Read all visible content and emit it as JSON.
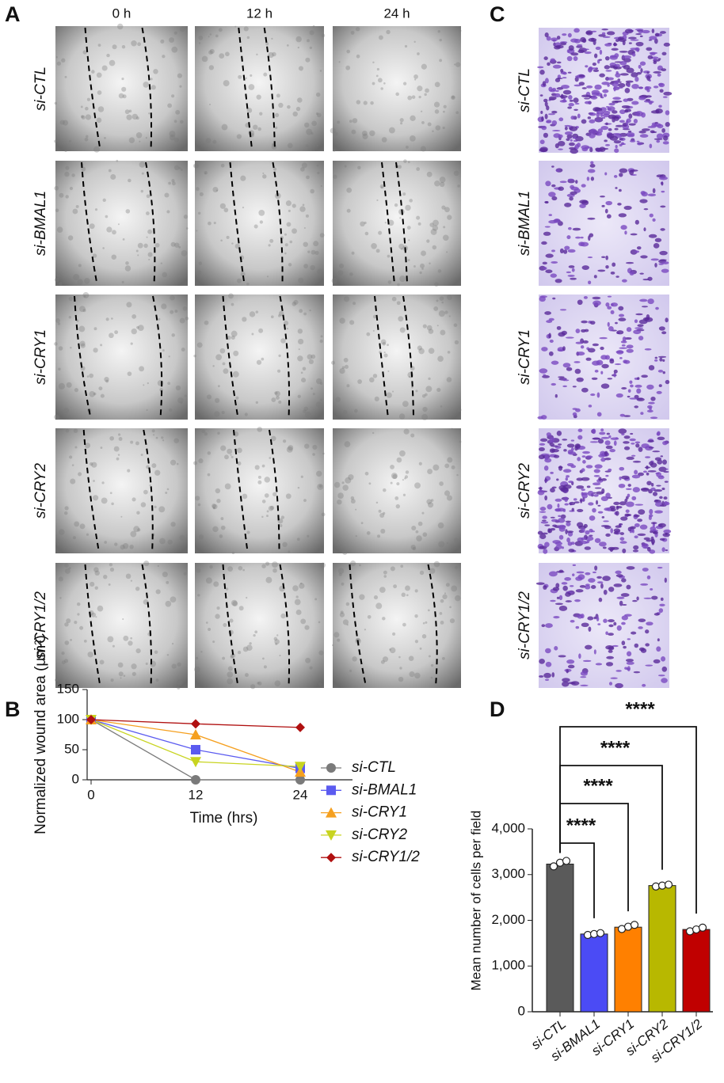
{
  "panel_labels": [
    "A",
    "B",
    "C",
    "D"
  ],
  "panel_a": {
    "columns": [
      "0 h",
      "12 h",
      "24 h"
    ],
    "rows": [
      "si-CTL",
      "si-BMAL1",
      "si-CRY1",
      "si-CRY2",
      "si-CRY1/2"
    ]
  },
  "panel_c": {
    "rows": [
      "si-CTL",
      "si-BMAL1",
      "si-CRY1",
      "si-CRY2",
      "si-CRY1/2"
    ]
  },
  "chart_data": [
    {
      "type": "line",
      "x_label": "Time (hrs)",
      "y_label": "Normalized wound area (μm²)",
      "x": [
        0,
        12,
        24
      ],
      "xlim": [
        0,
        30
      ],
      "xticks": [
        0,
        12,
        24
      ],
      "ylim": [
        0,
        150
      ],
      "yticks": [
        0,
        50,
        100,
        150
      ],
      "legend": "right",
      "series": [
        {
          "name": "si-CTL",
          "color": "#7a7a7a",
          "marker": "circle",
          "values": [
            100,
            0,
            0
          ]
        },
        {
          "name": "si-BMAL1",
          "color": "#5b5bf0",
          "marker": "square",
          "values": [
            100,
            50,
            19
          ]
        },
        {
          "name": "si-CRY1",
          "color": "#f5a020",
          "marker": "triangle-up",
          "values": [
            100,
            75,
            13
          ]
        },
        {
          "name": "si-CRY2",
          "color": "#c8d420",
          "marker": "triangle-down",
          "values": [
            100,
            30,
            22
          ]
        },
        {
          "name": "si-CRY1/2",
          "color": "#b01010",
          "marker": "diamond",
          "values": [
            100,
            93,
            87
          ]
        }
      ]
    },
    {
      "type": "bar",
      "y_label": "Mean number of cells per field",
      "categories": [
        "si-CTL",
        "si-BMAL1",
        "si-CRY1",
        "si-CRY2",
        "si-CRY1/2"
      ],
      "values": [
        3230,
        1700,
        1850,
        2760,
        1800
      ],
      "points": [
        [
          3180,
          3260,
          3300
        ],
        [
          1680,
          1700,
          1720
        ],
        [
          1810,
          1860,
          1900
        ],
        [
          2740,
          2760,
          2780
        ],
        [
          1760,
          1800,
          1840
        ]
      ],
      "colors": [
        "#5a5a5a",
        "#4b4bf5",
        "#ff8000",
        "#b8b800",
        "#c00000"
      ],
      "ylim": [
        0,
        4000
      ],
      "yticks": [
        0,
        {
          "value": 1000,
          "label": "1,000"
        },
        {
          "value": 2000,
          "label": "2,000"
        },
        {
          "value": 3000,
          "label": "3,000"
        },
        {
          "value": 4000,
          "label": "4,000"
        }
      ],
      "annotations": [
        "****",
        "****",
        "****",
        "****"
      ]
    }
  ]
}
